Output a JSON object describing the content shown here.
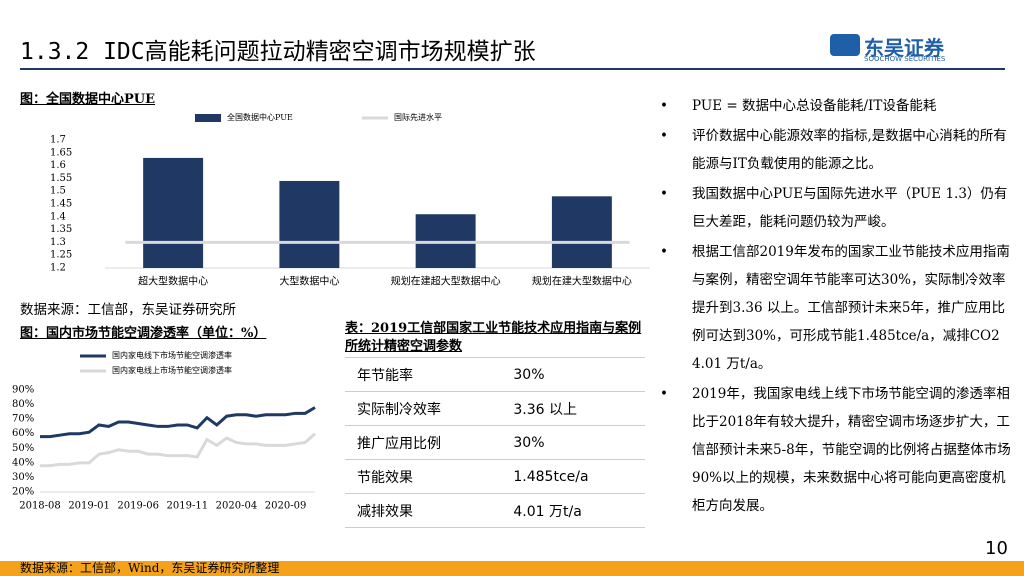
{
  "header": {
    "title": "1.3.2 IDC高能耗问题拉动精密空调市场规模扩张",
    "logo": "东吴证券",
    "logo_sub": "SOOCHOW SECURITIES"
  },
  "chart_data": [
    {
      "type": "bar",
      "title": "图：全国数据中心PUE",
      "source": "数据来源：工信部，东吴证券研究所",
      "categories": [
        "超大型数据中心",
        "大型数据中心",
        "规划在建超大型数据中心",
        "规划在建大型数据中心"
      ],
      "series": [
        {
          "name": "全国数据中心PUE",
          "color": "#1f3864",
          "values": [
            1.63,
            1.54,
            1.41,
            1.48
          ]
        },
        {
          "name": "国际先进水平",
          "color": "#d9d9d9",
          "type": "line",
          "values": [
            1.3,
            1.3,
            1.3,
            1.3
          ]
        }
      ],
      "ylim": [
        1.2,
        1.7
      ],
      "yticks": [
        1.7,
        1.65,
        1.6,
        1.55,
        1.5,
        1.45,
        1.4,
        1.35,
        1.3,
        1.25,
        1.2
      ]
    },
    {
      "type": "line",
      "title": "图：国内市场节能空调渗透率（单位：%）",
      "categories": [
        "2018-08",
        null,
        null,
        null,
        null,
        "2019-01",
        null,
        null,
        null,
        null,
        "2019-06",
        null,
        null,
        null,
        null,
        "2019-11",
        null,
        null,
        null,
        null,
        "2020-04",
        null,
        null,
        null,
        null,
        "2020-09",
        null,
        null,
        null
      ],
      "series": [
        {
          "name": "国内家电线下市场节能空调渗透率",
          "color": "#1f3864",
          "values": [
            58,
            58,
            59,
            60,
            60,
            61,
            66,
            65,
            68,
            68,
            67,
            66,
            65,
            65,
            66,
            66,
            64,
            71,
            66,
            72,
            73,
            73,
            72,
            73,
            73,
            73,
            74,
            74,
            78
          ]
        },
        {
          "name": "国内家电线上市场节能空调渗透率",
          "color": "#d9d9d9",
          "values": [
            38,
            38,
            39,
            39,
            40,
            40,
            46,
            47,
            49,
            48,
            48,
            46,
            46,
            45,
            45,
            45,
            44,
            56,
            52,
            57,
            54,
            53,
            53,
            52,
            52,
            52,
            53,
            54,
            60
          ]
        }
      ],
      "ylim": [
        20,
        90
      ],
      "yticks": [
        {
          "value": 90,
          "label": "90%"
        },
        {
          "value": 80,
          "label": "80%"
        },
        {
          "value": 70,
          "label": "70%"
        },
        {
          "value": 60,
          "label": "60%"
        },
        {
          "value": 50,
          "label": "50%"
        },
        {
          "value": 40,
          "label": "40%"
        },
        {
          "value": 30,
          "label": "30%"
        },
        {
          "value": 20,
          "label": "20%"
        }
      ]
    }
  ],
  "table": {
    "title": "表：2019工信部国家工业节能技术应用指南与案例所统计精密空调参数",
    "rows": [
      [
        "年节能率",
        "30%"
      ],
      [
        "实际制冷效率",
        "3.36 以上"
      ],
      [
        "推广应用比例",
        "30%"
      ],
      [
        "节能效果",
        "1.485tce/a"
      ],
      [
        "减排效果",
        "4.01 万t/a"
      ]
    ]
  },
  "bullets": [
    "PUE = 数据中心总设备能耗/IT设备能耗",
    "评价数据中心能源效率的指标,是数据中心消耗的所有能源与IT负载使用的能源之比。",
    "我国数据中心PUE与国际先进水平（PUE 1.3）仍有巨大差距，能耗问题仍较为严峻。",
    "根据工信部2019年发布的国家工业节能技术应用指南与案例，精密空调年节能率可达30%，实际制冷效率提升到3.36 以上。工信部预计未来5年，推广应用比例可达到30%，可形成节能1.485tce/a，减排CO2 4.01 万t/a。",
    "2019年，我国家电线上线下市场节能空调的渗透率相比于2018年有较大提升，精密空调市场逐步扩大，工信部预计未来5-8年，节能空调的比例将占据整体市场90%以上的规模，未来数据中心将可能向更高密度机柜方向发展。"
  ],
  "page_number": "10",
  "footer": "数据来源：工信部，Wind，东吴证券研究所整理"
}
